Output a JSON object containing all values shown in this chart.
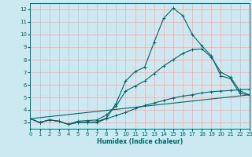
{
  "xlabel": "Humidex (Indice chaleur)",
  "bg_color": "#cce8f0",
  "grid_color": "#e8b0b0",
  "line_color": "#006666",
  "xmin": 0,
  "xmax": 23,
  "ymin": 2.5,
  "ymax": 12.5,
  "yticks": [
    3,
    4,
    5,
    6,
    7,
    8,
    9,
    10,
    11,
    12
  ],
  "line1_x": [
    0,
    1,
    2,
    3,
    4,
    5,
    6,
    7,
    8,
    9,
    10,
    11,
    12,
    13,
    14,
    15,
    16,
    17,
    18,
    19,
    20,
    21,
    22,
    23
  ],
  "line1_y": [
    3.3,
    3.0,
    3.2,
    3.1,
    2.85,
    3.0,
    3.0,
    3.05,
    3.35,
    4.5,
    6.3,
    7.05,
    7.4,
    9.4,
    11.3,
    12.1,
    11.5,
    10.0,
    9.1,
    8.3,
    6.7,
    6.5,
    5.3,
    5.2
  ],
  "line2_x": [
    0,
    1,
    2,
    3,
    4,
    5,
    6,
    7,
    8,
    9,
    10,
    11,
    12,
    13,
    14,
    15,
    16,
    17,
    18,
    19,
    20,
    21,
    22,
    23
  ],
  "line2_y": [
    3.3,
    3.0,
    3.2,
    3.1,
    2.85,
    3.1,
    3.15,
    3.2,
    3.6,
    4.3,
    5.5,
    5.9,
    6.3,
    6.9,
    7.5,
    8.0,
    8.5,
    8.8,
    8.85,
    8.2,
    7.0,
    6.6,
    5.5,
    5.2
  ],
  "line3_x": [
    0,
    1,
    2,
    3,
    4,
    5,
    6,
    7,
    8,
    9,
    10,
    11,
    12,
    13,
    14,
    15,
    16,
    17,
    18,
    19,
    20,
    21,
    22,
    23
  ],
  "line3_y": [
    3.3,
    3.0,
    3.2,
    3.1,
    2.85,
    3.0,
    3.0,
    3.0,
    3.3,
    3.55,
    3.8,
    4.1,
    4.35,
    4.55,
    4.75,
    4.95,
    5.1,
    5.2,
    5.35,
    5.45,
    5.5,
    5.55,
    5.6,
    5.65
  ],
  "line4_x": [
    0,
    23
  ],
  "line4_y": [
    3.3,
    5.2
  ]
}
